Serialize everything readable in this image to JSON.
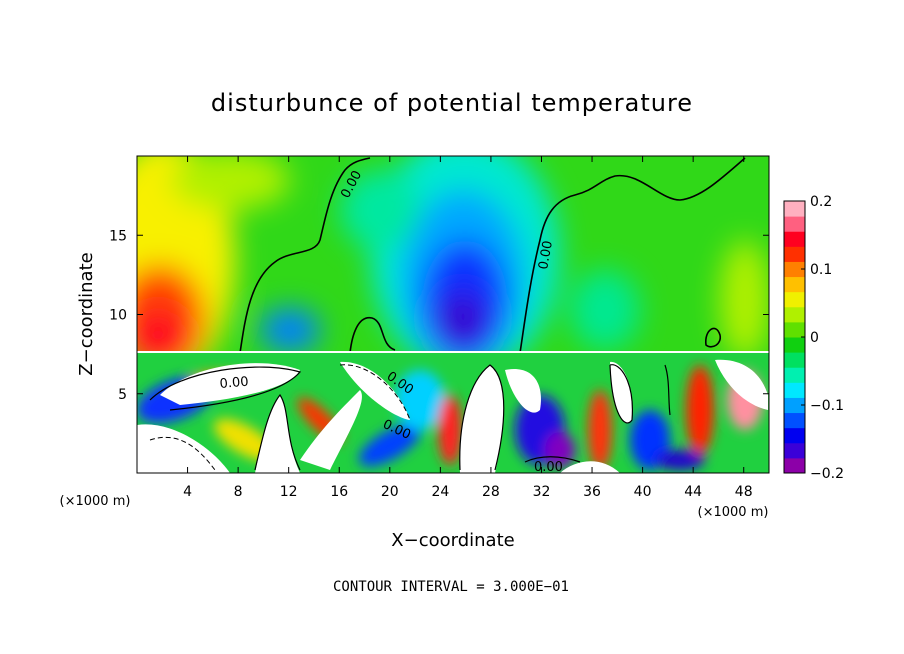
{
  "chart_data": {
    "type": "heatmap",
    "title": "disturbunce of potential temperature",
    "xlabel": "X−coordinate",
    "ylabel": "Z−coordinate",
    "x_unit_left": "(×1000 m)",
    "x_unit_right": "(×1000 m)",
    "xlim": [
      0,
      50
    ],
    "ylim": [
      0,
      20
    ],
    "x_ticks": [
      4,
      8,
      12,
      16,
      20,
      24,
      28,
      32,
      36,
      40,
      44,
      48
    ],
    "y_ticks": [
      5,
      10,
      15
    ],
    "colorbar": {
      "min": -0.2,
      "max": 0.2,
      "tick_values": [
        -0.2,
        -0.1,
        0,
        0.1,
        0.2
      ],
      "tick_labels": [
        "−0.2",
        "−0.1",
        "0",
        "0.1",
        "0.2"
      ],
      "colors": [
        "#8c00a8",
        "#3a00d8",
        "#0000f0",
        "#0050ff",
        "#00a0ff",
        "#00e8ff",
        "#00f0b0",
        "#00e060",
        "#10d010",
        "#60e000",
        "#b0f000",
        "#f0f000",
        "#ffc000",
        "#ff8000",
        "#ff3000",
        "#ff0020",
        "#ff6080",
        "#ffb0c0"
      ]
    },
    "contour_labels": [
      "0.00",
      "0.00",
      "0.00",
      "0.00",
      "0.00",
      "0.00"
    ],
    "contour_interval": "CONTOUR INTERVAL = 3.000E−01",
    "field_regions": [
      {
        "x": [
          0,
          50
        ],
        "z": [
          7.5,
          20
        ],
        "value": 0.02
      },
      {
        "x": [
          0,
          6
        ],
        "z": [
          7.5,
          17
        ],
        "value": 0.12
      },
      {
        "x": [
          1,
          4
        ],
        "z": [
          8,
          12
        ],
        "value": 0.19
      },
      {
        "x": [
          6,
          10
        ],
        "z": [
          14,
          20
        ],
        "value": 0.07
      },
      {
        "x": [
          20,
          32
        ],
        "z": [
          7.5,
          19
        ],
        "value": -0.08
      },
      {
        "x": [
          22,
          30
        ],
        "z": [
          7.5,
          16
        ],
        "value": -0.13
      },
      {
        "x": [
          23,
          28
        ],
        "z": [
          8,
          13
        ],
        "value": -0.18
      },
      {
        "x": [
          13,
          17
        ],
        "z": [
          8,
          10
        ],
        "value": -0.08
      },
      {
        "x": [
          45,
          50
        ],
        "z": [
          7.5,
          14
        ],
        "value": 0.06
      },
      {
        "x": [
          0,
          50
        ],
        "z": [
          0,
          7.5
        ],
        "value": 0.0
      }
    ]
  }
}
